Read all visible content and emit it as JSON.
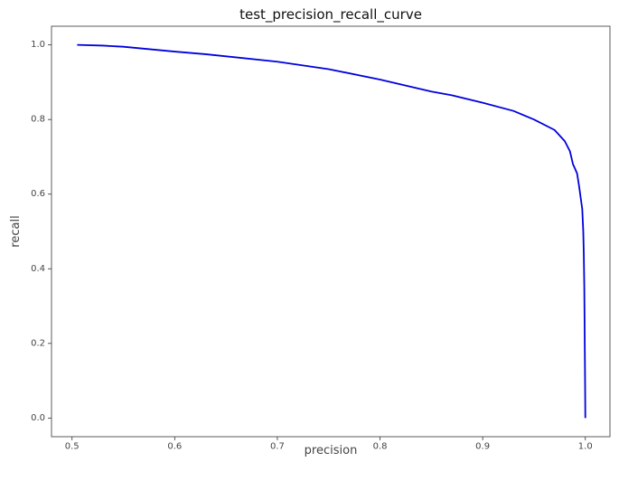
{
  "chart_data": {
    "type": "line",
    "title": "test_precision_recall_curve",
    "xlabel": "precision",
    "ylabel": "recall",
    "xlim": [
      0.48,
      1.024
    ],
    "ylim": [
      -0.05,
      1.05
    ],
    "xticks": [
      0.5,
      0.6,
      0.7,
      0.8,
      0.9,
      1.0
    ],
    "xtick_labels": [
      "0.5",
      "0.6",
      "0.7",
      "0.8",
      "0.9",
      "1.0"
    ],
    "yticks": [
      0.0,
      0.2,
      0.4,
      0.6,
      0.8,
      1.0
    ],
    "ytick_labels": [
      "0.0",
      "0.2",
      "0.4",
      "0.6",
      "0.8",
      "1.0"
    ],
    "grid": false,
    "series": [
      {
        "color": "#0000dd",
        "x": [
          0.505,
          0.53,
          0.55,
          0.6,
          0.63,
          0.7,
          0.75,
          0.8,
          0.85,
          0.87,
          0.9,
          0.93,
          0.95,
          0.97,
          0.98,
          0.985,
          0.988,
          0.99,
          0.992,
          0.994,
          0.996,
          0.997,
          0.998,
          0.9985,
          0.999,
          0.9993,
          0.9996,
          0.9998,
          1.0
        ],
        "y": [
          1.0,
          0.998,
          0.995,
          0.982,
          0.975,
          0.955,
          0.935,
          0.907,
          0.875,
          0.865,
          0.845,
          0.823,
          0.8,
          0.772,
          0.742,
          0.715,
          0.68,
          0.668,
          0.655,
          0.62,
          0.58,
          0.56,
          0.5,
          0.44,
          0.35,
          0.25,
          0.15,
          0.08,
          0.0
        ]
      }
    ]
  }
}
